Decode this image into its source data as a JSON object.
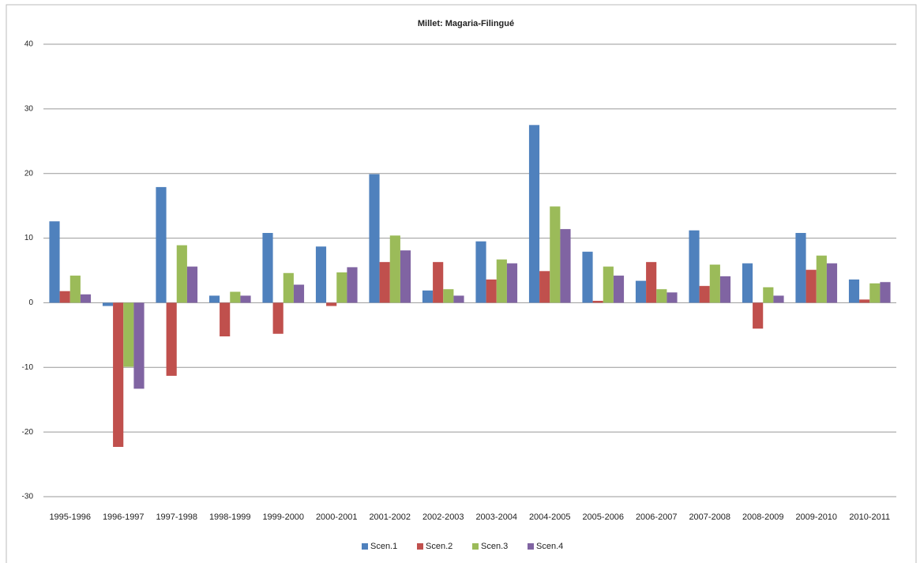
{
  "chart_data": {
    "type": "bar",
    "title": "Millet: Magaria-Filingué",
    "categories": [
      "1995-1996",
      "1996-1997",
      "1997-1998",
      "1998-1999",
      "1999-2000",
      "2000-2001",
      "2001-2002",
      "2002-2003",
      "2003-2004",
      "2004-2005",
      "2005-2006",
      "2006-2007",
      "2007-2008",
      "2008-2009",
      "2009-2010",
      "2010-2011"
    ],
    "series": [
      {
        "name": "Scen.1",
        "color": "#4f81bd",
        "values": [
          12.6,
          -0.5,
          17.9,
          1.1,
          10.8,
          8.7,
          19.9,
          1.9,
          9.5,
          27.5,
          7.9,
          3.4,
          11.2,
          6.1,
          10.8,
          3.6
        ]
      },
      {
        "name": "Scen.2",
        "color": "#c0504d",
        "values": [
          1.8,
          -22.3,
          -11.3,
          -5.2,
          -4.8,
          -0.5,
          6.3,
          6.3,
          3.6,
          4.9,
          0.3,
          6.3,
          2.6,
          -4.0,
          5.1,
          0.5
        ]
      },
      {
        "name": "Scen.3",
        "color": "#9bbb59",
        "values": [
          4.2,
          -9.9,
          8.9,
          1.7,
          4.6,
          4.7,
          10.4,
          2.1,
          6.7,
          14.9,
          5.6,
          2.1,
          5.9,
          2.4,
          7.3,
          3.0
        ]
      },
      {
        "name": "Scen.4",
        "color": "#8064a2",
        "values": [
          1.3,
          -13.3,
          5.6,
          1.1,
          2.8,
          5.5,
          8.1,
          1.1,
          6.1,
          11.4,
          4.2,
          1.6,
          4.1,
          1.1,
          6.1,
          3.2
        ]
      }
    ],
    "ylim": [
      -30,
      40
    ],
    "yticks": [
      -30,
      -20,
      -10,
      0,
      10,
      20,
      30,
      40
    ],
    "grid": true,
    "legend": "bottom"
  }
}
